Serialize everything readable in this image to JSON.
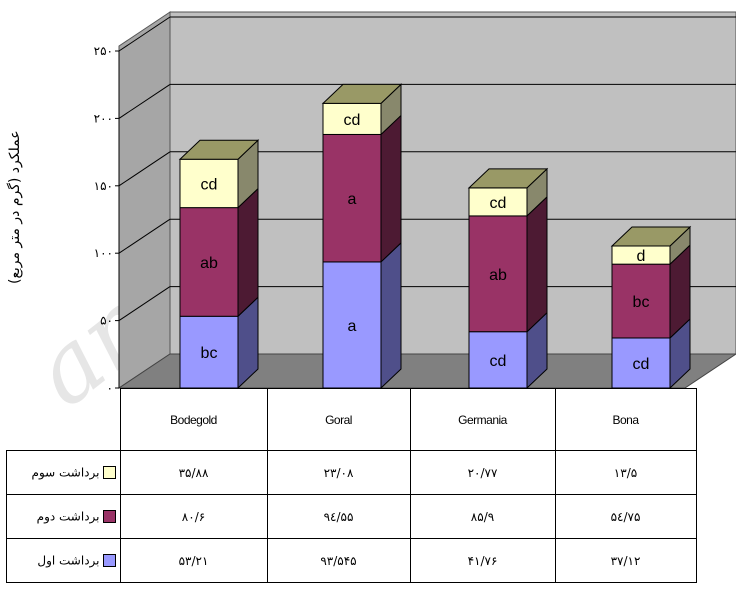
{
  "chart_data": {
    "type": "bar",
    "stacked": true,
    "three_d": true,
    "ylabel": "عملکرد (گرم در متر مربع)",
    "ylim": [
      0,
      250
    ],
    "yticks": [
      0,
      50,
      100,
      150,
      200,
      250
    ],
    "ytick_labels": [
      "۰",
      "۵۰",
      "۱۰۰",
      "۱۵۰",
      "۲۰۰",
      "۲۵۰"
    ],
    "grid": true,
    "categories": [
      "Bodegold",
      "Goral",
      "Germania",
      "Bona"
    ],
    "series": [
      {
        "name": "برداشت اول",
        "color": "#9999ff",
        "side_color": "#4f4f8a",
        "values": [
          53.21,
          93.545,
          41.76,
          37.12
        ],
        "value_labels": [
          "۵۳/۲۱",
          "۹۳/۵۴۵",
          "۴۱/۷۶",
          "۳۷/۱۲"
        ],
        "letters": [
          "bc",
          "a",
          "cd",
          "cd"
        ]
      },
      {
        "name": "برداشت دوم",
        "color": "#993366",
        "side_color": "#4d1a33",
        "values": [
          80.6,
          94.55,
          85.9,
          54.75
        ],
        "value_labels": [
          "۸۰/۶",
          "۹٤/۵۵",
          "۸۵/۹",
          "۵٤/۷۵"
        ],
        "letters": [
          "ab",
          "a",
          "ab",
          "bc"
        ]
      },
      {
        "name": "برداشت سوم",
        "color": "#ffffcc",
        "side_color": "#88886c",
        "values": [
          35.88,
          23.08,
          20.77,
          13.5
        ],
        "value_labels": [
          "۳۵/۸۸",
          "۲۳/۰۸",
          "۲۰/۷۷",
          "۱۳/۵"
        ],
        "letters": [
          "cd",
          "cd",
          "cd",
          "d"
        ]
      }
    ],
    "legend_placement": "table-left"
  },
  "watermark": "arch"
}
